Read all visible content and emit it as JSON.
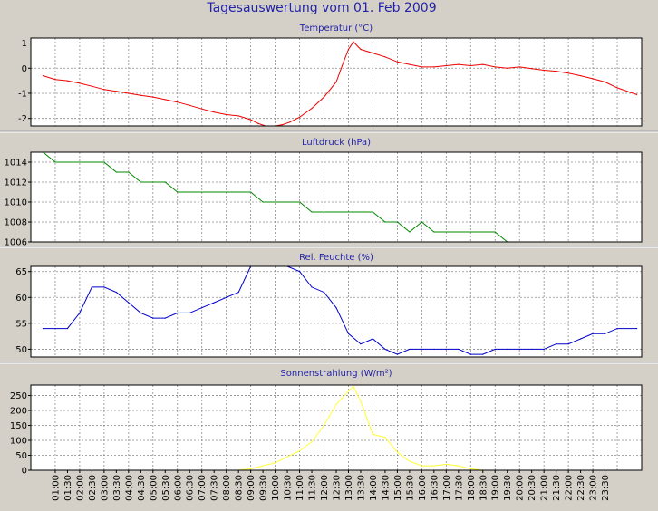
{
  "page_title": "Tagesauswertung vom 01. Feb 2009",
  "colors": {
    "background": "#d4d0c8",
    "plot_bg": "#ffffff",
    "title": "#2222aa",
    "text": "#000000",
    "grid": "#8c8c8c",
    "temperature": "#ee0000",
    "pressure": "#008800",
    "humidity": "#0000cc",
    "solar": "#ffff33"
  },
  "x_axis": {
    "tick_labels": [
      "01:00",
      "01:30",
      "02:00",
      "02:30",
      "03:00",
      "03:30",
      "04:00",
      "04:30",
      "05:00",
      "05:30",
      "06:00",
      "06:30",
      "07:00",
      "07:30",
      "08:00",
      "08:30",
      "09:00",
      "09:30",
      "10:00",
      "10:30",
      "11:00",
      "11:30",
      "12:00",
      "12:30",
      "13:00",
      "13:30",
      "14:00",
      "14:30",
      "15:00",
      "15:30",
      "16:00",
      "16:30",
      "17:00",
      "17:30",
      "18:00",
      "18:30",
      "19:00",
      "19:30",
      "20:00",
      "20:30",
      "21:00",
      "21:30",
      "22:00",
      "22:30",
      "23:00",
      "23:30"
    ]
  },
  "chart_data": [
    {
      "type": "line",
      "title": "Temperatur (°C)",
      "series": [
        {
          "color": "#ee0000",
          "points": [
            [
              0.5,
              -0.3
            ],
            [
              1.0,
              -0.45
            ],
            [
              1.5,
              -0.5
            ],
            [
              2.0,
              -0.6
            ],
            [
              2.5,
              -0.72
            ],
            [
              3.0,
              -0.85
            ],
            [
              3.5,
              -0.92
            ],
            [
              4.0,
              -1.0
            ],
            [
              4.5,
              -1.08
            ],
            [
              5.0,
              -1.15
            ],
            [
              5.5,
              -1.25
            ],
            [
              6.0,
              -1.35
            ],
            [
              6.5,
              -1.48
            ],
            [
              7.0,
              -1.62
            ],
            [
              7.5,
              -1.75
            ],
            [
              8.0,
              -1.85
            ],
            [
              8.5,
              -1.9
            ],
            [
              9.0,
              -2.05
            ],
            [
              9.3,
              -2.2
            ],
            [
              9.6,
              -2.3
            ],
            [
              10.0,
              -2.3
            ],
            [
              10.3,
              -2.25
            ],
            [
              10.6,
              -2.15
            ],
            [
              11.0,
              -1.95
            ],
            [
              11.5,
              -1.6
            ],
            [
              12.0,
              -1.15
            ],
            [
              12.5,
              -0.55
            ],
            [
              12.8,
              0.25
            ],
            [
              13.0,
              0.75
            ],
            [
              13.2,
              1.05
            ],
            [
              13.5,
              0.75
            ],
            [
              14.0,
              0.6
            ],
            [
              14.5,
              0.45
            ],
            [
              15.0,
              0.25
            ],
            [
              15.5,
              0.15
            ],
            [
              16.0,
              0.05
            ],
            [
              16.5,
              0.05
            ],
            [
              17.0,
              0.1
            ],
            [
              17.5,
              0.15
            ],
            [
              18.0,
              0.1
            ],
            [
              18.5,
              0.15
            ],
            [
              19.0,
              0.05
            ],
            [
              19.5,
              0.0
            ],
            [
              20.0,
              0.05
            ],
            [
              20.5,
              -0.02
            ],
            [
              21.0,
              -0.08
            ],
            [
              21.5,
              -0.12
            ],
            [
              22.0,
              -0.2
            ],
            [
              22.5,
              -0.3
            ],
            [
              23.0,
              -0.42
            ],
            [
              23.5,
              -0.55
            ],
            [
              24.0,
              -0.78
            ],
            [
              24.5,
              -0.95
            ],
            [
              24.8,
              -1.05
            ]
          ]
        }
      ],
      "ylim": [
        -2.3,
        1.2
      ],
      "yticks": [
        1,
        0,
        -1,
        -2
      ]
    },
    {
      "type": "line",
      "title": "Luftdruck (hPa)",
      "series": [
        {
          "color": "#008800",
          "points": [
            [
              0.5,
              1015
            ],
            [
              1.0,
              1014
            ],
            [
              3.0,
              1014
            ],
            [
              3.5,
              1013
            ],
            [
              4.0,
              1013
            ],
            [
              4.5,
              1012
            ],
            [
              5.5,
              1012
            ],
            [
              6.0,
              1011
            ],
            [
              9.0,
              1011
            ],
            [
              9.5,
              1010
            ],
            [
              11.0,
              1010
            ],
            [
              11.5,
              1009
            ],
            [
              14.0,
              1009
            ],
            [
              14.5,
              1008
            ],
            [
              15.0,
              1008
            ],
            [
              15.5,
              1007
            ],
            [
              16.0,
              1008
            ],
            [
              16.5,
              1007
            ],
            [
              19.0,
              1007
            ],
            [
              19.5,
              1006
            ],
            [
              24.8,
              1006
            ]
          ]
        }
      ],
      "ylim": [
        1006,
        1015
      ],
      "yticks": [
        1014,
        1012,
        1010,
        1008,
        1006
      ]
    },
    {
      "type": "line",
      "title": "Rel. Feuchte (%)",
      "series": [
        {
          "color": "#0000cc",
          "points": [
            [
              0.5,
              54
            ],
            [
              1.5,
              54
            ],
            [
              2.0,
              57
            ],
            [
              2.5,
              62
            ],
            [
              3.0,
              62
            ],
            [
              3.5,
              61
            ],
            [
              4.0,
              59
            ],
            [
              4.5,
              57
            ],
            [
              5.0,
              56
            ],
            [
              5.5,
              56
            ],
            [
              6.0,
              57
            ],
            [
              6.5,
              57
            ],
            [
              7.0,
              58
            ],
            [
              7.5,
              59
            ],
            [
              8.0,
              60
            ],
            [
              8.5,
              61
            ],
            [
              9.0,
              66
            ],
            [
              10.0,
              66
            ],
            [
              10.5,
              66
            ],
            [
              11.0,
              65
            ],
            [
              11.5,
              62
            ],
            [
              12.0,
              61
            ],
            [
              12.5,
              58
            ],
            [
              13.0,
              53
            ],
            [
              13.5,
              51
            ],
            [
              14.0,
              52
            ],
            [
              14.5,
              50
            ],
            [
              15.0,
              49
            ],
            [
              15.5,
              50
            ],
            [
              16.0,
              50
            ],
            [
              16.5,
              50
            ],
            [
              17.0,
              50
            ],
            [
              17.5,
              50
            ],
            [
              18.0,
              49
            ],
            [
              18.5,
              49
            ],
            [
              19.0,
              50
            ],
            [
              19.5,
              50
            ],
            [
              20.0,
              50
            ],
            [
              20.5,
              50
            ],
            [
              21.0,
              50
            ],
            [
              21.5,
              51
            ],
            [
              22.0,
              51
            ],
            [
              22.5,
              52
            ],
            [
              23.0,
              53
            ],
            [
              23.5,
              53
            ],
            [
              24.0,
              54
            ],
            [
              24.8,
              54
            ]
          ]
        }
      ],
      "ylim": [
        48.5,
        66
      ],
      "yticks": [
        65,
        60,
        55,
        50
      ]
    },
    {
      "type": "line",
      "title": "Sonnenstrahlung (W/m²)",
      "series": [
        {
          "color": "#ffff33",
          "points": [
            [
              8.5,
              0
            ],
            [
              9.0,
              5
            ],
            [
              9.5,
              15
            ],
            [
              10.0,
              25
            ],
            [
              10.5,
              45
            ],
            [
              11.0,
              65
            ],
            [
              11.5,
              95
            ],
            [
              12.0,
              150
            ],
            [
              12.5,
              220
            ],
            [
              13.0,
              265
            ],
            [
              13.2,
              280
            ],
            [
              13.5,
              230
            ],
            [
              14.0,
              120
            ],
            [
              14.5,
              110
            ],
            [
              15.0,
              60
            ],
            [
              15.5,
              30
            ],
            [
              16.0,
              15
            ],
            [
              16.5,
              15
            ],
            [
              17.0,
              20
            ],
            [
              17.5,
              15
            ],
            [
              18.0,
              5
            ],
            [
              18.5,
              0
            ]
          ]
        }
      ],
      "ylim": [
        0,
        285
      ],
      "yticks": [
        250,
        200,
        150,
        100,
        50,
        0
      ]
    }
  ]
}
